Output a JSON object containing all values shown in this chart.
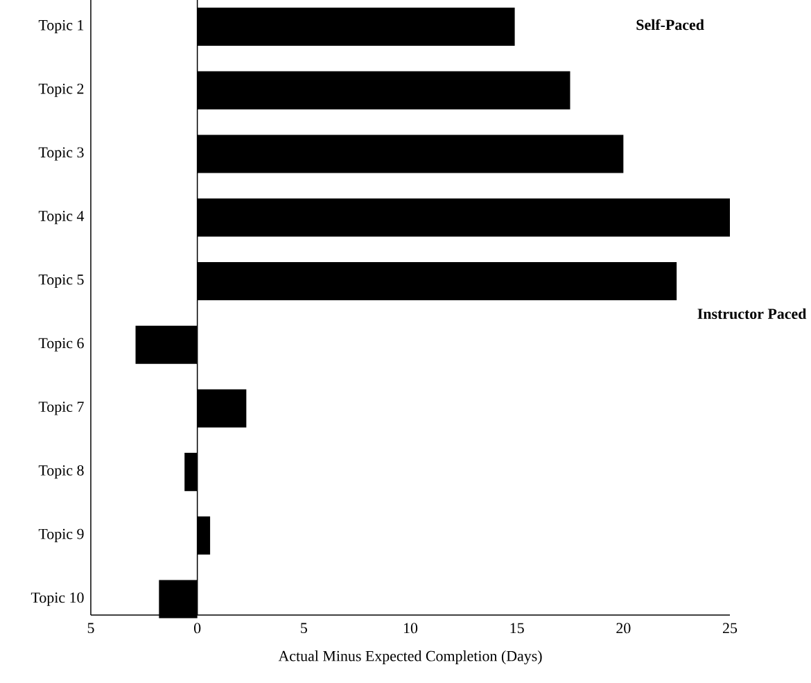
{
  "chart_data": {
    "type": "bar",
    "orientation": "horizontal",
    "xlabel": "Actual Minus Expected Completion (Days)",
    "categories": [
      "Topic 1",
      "Topic 2",
      "Topic 3",
      "Topic 4",
      "Topic 5",
      "Topic 6",
      "Topic 7",
      "Topic 8",
      "Topic 9",
      "Topic 10"
    ],
    "values": [
      14.9,
      17.5,
      20,
      25,
      22.5,
      -2.9,
      2.3,
      -0.6,
      0.6,
      -1.8
    ],
    "color": "#000000",
    "xlim": [
      -5,
      25
    ],
    "xticks": [
      {
        "value": -5,
        "label": "5"
      },
      0,
      5,
      10,
      15,
      20,
      25
    ],
    "grid": false,
    "ref_lines": [
      {
        "axis": "x",
        "value": 0,
        "color": "#000000"
      }
    ],
    "annotations": [
      "Self-Paced",
      "Instructor Paced"
    ]
  }
}
